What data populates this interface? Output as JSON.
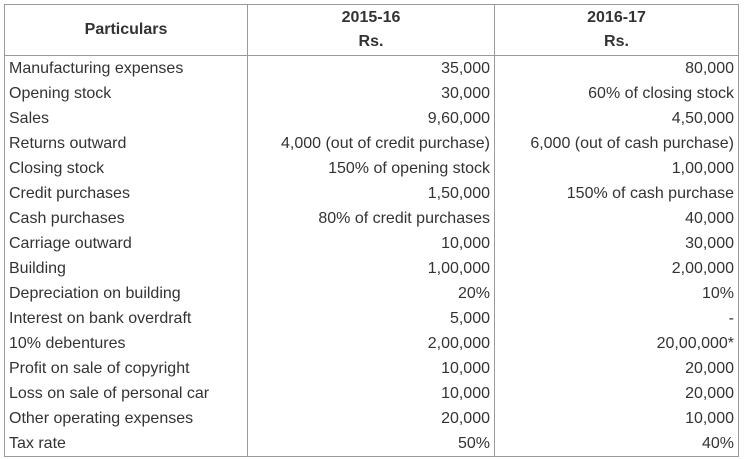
{
  "header": {
    "particulars": "Particulars",
    "col1_year": "2015-16",
    "col1_unit": "Rs.",
    "col2_year": "2016-17",
    "col2_unit": "Rs."
  },
  "rows": [
    {
      "particular": "Manufacturing expenses",
      "y1": "35,000",
      "y2": "80,000"
    },
    {
      "particular": "Opening stock",
      "y1": "30,000",
      "y2": "60% of closing stock"
    },
    {
      "particular": "Sales",
      "y1": "9,60,000",
      "y2": "4,50,000"
    },
    {
      "particular": "Returns outward",
      "y1": "4,000 (out of credit purchase)",
      "y2": "6,000 (out of cash purchase)"
    },
    {
      "particular": "Closing stock",
      "y1": "150% of opening stock",
      "y2": "1,00,000"
    },
    {
      "particular": "Credit purchases",
      "y1": "1,50,000",
      "y2": "150% of cash purchase"
    },
    {
      "particular": "Cash purchases",
      "y1": "80% of credit purchases",
      "y2": "40,000"
    },
    {
      "particular": "Carriage outward",
      "y1": "10,000",
      "y2": "30,000"
    },
    {
      "particular": "Building",
      "y1": "1,00,000",
      "y2": "2,00,000"
    },
    {
      "particular": "Depreciation on building",
      "y1": "20%",
      "y2": "10%"
    },
    {
      "particular": "Interest on bank overdraft",
      "y1": "5,000",
      "y2": "-"
    },
    {
      "particular": "10% debentures",
      "y1": "2,00,000",
      "y2": "20,00,000*"
    },
    {
      "particular": "Profit on sale of copyright",
      "y1": "10,000",
      "y2": "20,000"
    },
    {
      "particular": "Loss on sale of personal car",
      "y1": "10,000",
      "y2": "20,000"
    },
    {
      "particular": "Other operating expenses",
      "y1": "20,000",
      "y2": "10,000"
    },
    {
      "particular": "Tax rate",
      "y1": "50%",
      "y2": "40%"
    }
  ]
}
